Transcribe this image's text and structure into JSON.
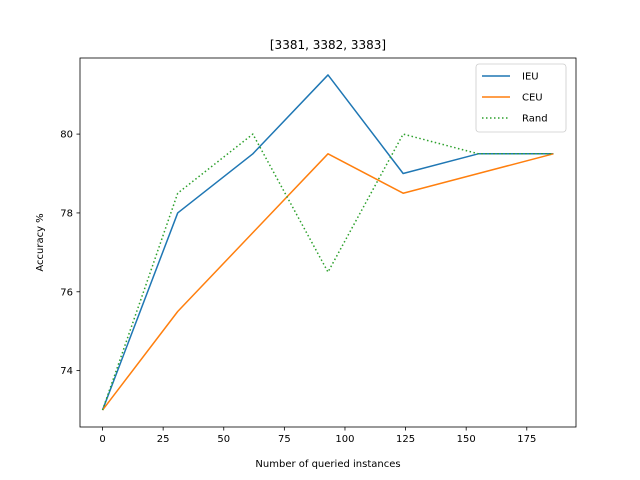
{
  "chart_data": {
    "type": "line",
    "title": "[3381, 3382, 3383]",
    "xlabel": "Number of queried instances",
    "ylabel": "Accuracy %",
    "xlim": [
      -9.3,
      195.3
    ],
    "ylim": [
      72.57,
      81.93
    ],
    "xticks": [
      0,
      25,
      50,
      75,
      100,
      125,
      150,
      175
    ],
    "yticks": [
      74,
      76,
      78,
      80
    ],
    "grid": false,
    "legend": "top-right",
    "x": [
      0,
      31,
      62,
      93,
      124,
      155,
      186
    ],
    "series": [
      {
        "name": "IEU",
        "values": [
          73.0,
          78.0,
          79.5,
          81.5,
          79.0,
          79.5,
          79.5
        ],
        "color": "#1f77b4",
        "style": "solid"
      },
      {
        "name": "CEU",
        "values": [
          73.0,
          75.5,
          77.5,
          79.5,
          78.5,
          79.0,
          79.5
        ],
        "color": "#ff7f0e",
        "style": "solid"
      },
      {
        "name": "Rand",
        "values": [
          73.0,
          78.5,
          80.0,
          76.5,
          80.0,
          79.5,
          79.5
        ],
        "color": "#2ca02c",
        "style": "dotted"
      }
    ]
  }
}
